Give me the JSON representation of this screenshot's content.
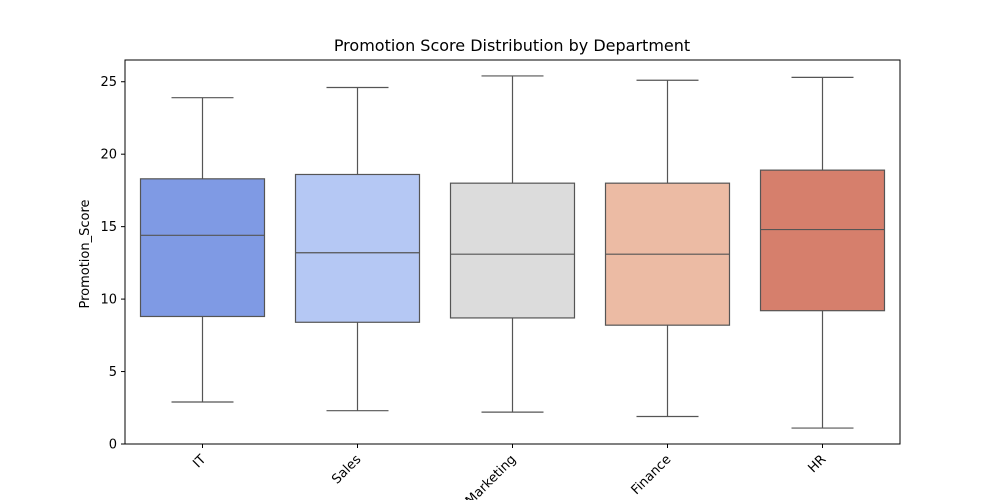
{
  "chart_data": {
    "type": "box",
    "title": "Promotion Score Distribution by Department",
    "xlabel": "",
    "ylabel": "Promotion_Score",
    "ylim": [
      0,
      26.5
    ],
    "yticks": [
      0,
      5,
      10,
      15,
      20,
      25
    ],
    "categories": [
      "IT",
      "Sales",
      "Marketing",
      "Finance",
      "HR"
    ],
    "colors": [
      "#7f9ae4",
      "#b5c8f4",
      "#dcdcdc",
      "#ecbba4",
      "#d67f6c"
    ],
    "boxes": [
      {
        "category": "IT",
        "min": 2.9,
        "q1": 8.8,
        "median": 14.4,
        "q3": 18.3,
        "max": 23.9
      },
      {
        "category": "Sales",
        "min": 2.3,
        "q1": 8.4,
        "median": 13.2,
        "q3": 18.6,
        "max": 24.6
      },
      {
        "category": "Marketing",
        "min": 2.2,
        "q1": 8.7,
        "median": 13.1,
        "q3": 18.0,
        "max": 25.4
      },
      {
        "category": "Finance",
        "min": 1.9,
        "q1": 8.2,
        "median": 13.1,
        "q3": 18.0,
        "max": 25.1
      },
      {
        "category": "HR",
        "min": 1.1,
        "q1": 9.2,
        "median": 14.8,
        "q3": 18.9,
        "max": 25.3
      }
    ],
    "grid": false,
    "legend": "none"
  }
}
